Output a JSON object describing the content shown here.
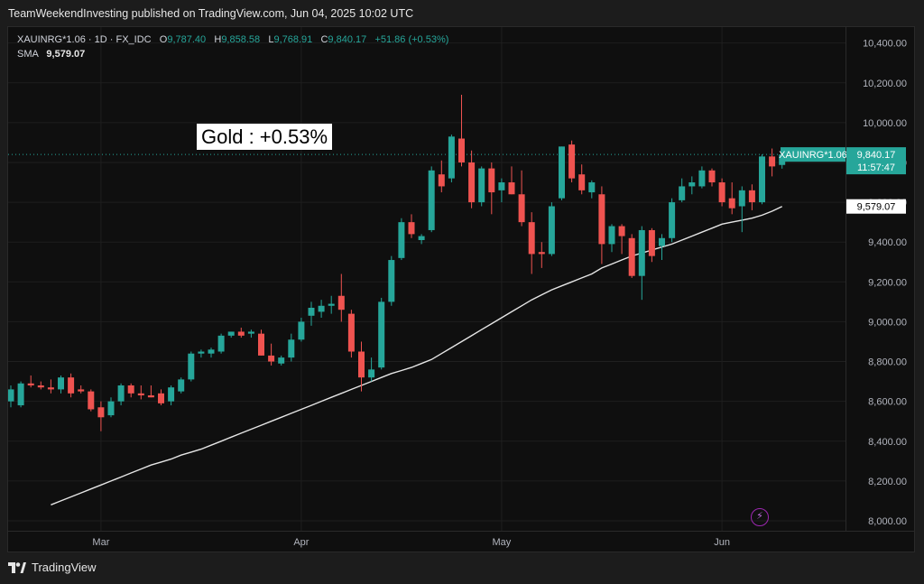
{
  "header": {
    "published_text": "TeamWeekendInvesting published on TradingView.com, Jun 04, 2025 10:02 UTC"
  },
  "legend": {
    "symbol": "XAUINRG*1.06",
    "interval": "1D",
    "exchange": "FX_IDC",
    "open_label": "O",
    "open": "9,787.40",
    "high_label": "H",
    "high": "9,858.58",
    "low_label": "L",
    "low": "9,768.91",
    "close_label": "C",
    "close": "9,840.17",
    "change": "+51.86 (+0.53%)",
    "sma_label": "SMA",
    "sma_value": "9,579.07"
  },
  "annotation": {
    "text": "Gold : +0.53%"
  },
  "price_tags": {
    "symbol_tag": "XAUINRG*1.06",
    "last_price": "9,840.17",
    "countdown": "11:57:47",
    "sma_tag": "9,579.07"
  },
  "colors": {
    "up": "#26a69a",
    "down": "#ef5350",
    "sma": "#e6e6e6",
    "background": "#0f0f0f",
    "grid": "#1f1f1f",
    "text": "#b2b5be",
    "price_line": "#26a69a"
  },
  "footer": {
    "brand": "TradingView"
  },
  "icons": {
    "tv_logo": "tradingview-logo",
    "bolt": "lightning-icon"
  },
  "chart_data": {
    "type": "candlestick",
    "title": "",
    "xlabel": "",
    "ylabel": "",
    "ylim": [
      7950,
      10480
    ],
    "y_ticks": [
      "8,000.00",
      "8,200.00",
      "8,400.00",
      "8,600.00",
      "8,800.00",
      "9,000.00",
      "9,200.00",
      "9,400.00",
      "9,600.00",
      "9,800.00",
      "10,000.00",
      "10,200.00",
      "10,400.00"
    ],
    "y_tick_values": [
      8000,
      8200,
      8400,
      8600,
      8800,
      9000,
      9200,
      9400,
      9600,
      9800,
      10000,
      10200,
      10400
    ],
    "x_ticks": [
      {
        "label": "Mar",
        "index": 9
      },
      {
        "label": "Apr",
        "index": 29
      },
      {
        "label": "May",
        "index": 49
      },
      {
        "label": "Jun",
        "index": 71
      }
    ],
    "series": [
      {
        "name": "XAUINRG*1.06",
        "candles": [
          {
            "o": 8600,
            "h": 8680,
            "l": 8570,
            "c": 8660
          },
          {
            "o": 8580,
            "h": 8700,
            "l": 8570,
            "c": 8690
          },
          {
            "o": 8690,
            "h": 8730,
            "l": 8670,
            "c": 8680
          },
          {
            "o": 8680,
            "h": 8700,
            "l": 8660,
            "c": 8670
          },
          {
            "o": 8670,
            "h": 8710,
            "l": 8640,
            "c": 8660
          },
          {
            "o": 8660,
            "h": 8730,
            "l": 8640,
            "c": 8720
          },
          {
            "o": 8720,
            "h": 8740,
            "l": 8620,
            "c": 8640
          },
          {
            "o": 8660,
            "h": 8680,
            "l": 8640,
            "c": 8650
          },
          {
            "o": 8650,
            "h": 8660,
            "l": 8550,
            "c": 8560
          },
          {
            "o": 8570,
            "h": 8600,
            "l": 8450,
            "c": 8520
          },
          {
            "o": 8530,
            "h": 8620,
            "l": 8520,
            "c": 8600
          },
          {
            "o": 8600,
            "h": 8690,
            "l": 8580,
            "c": 8680
          },
          {
            "o": 8680,
            "h": 8690,
            "l": 8620,
            "c": 8640
          },
          {
            "o": 8640,
            "h": 8680,
            "l": 8610,
            "c": 8630
          },
          {
            "o": 8630,
            "h": 8680,
            "l": 8620,
            "c": 8620
          },
          {
            "o": 8640,
            "h": 8660,
            "l": 8580,
            "c": 8590
          },
          {
            "o": 8600,
            "h": 8680,
            "l": 8580,
            "c": 8670
          },
          {
            "o": 8650,
            "h": 8720,
            "l": 8640,
            "c": 8710
          },
          {
            "o": 8710,
            "h": 8850,
            "l": 8700,
            "c": 8840
          },
          {
            "o": 8840,
            "h": 8860,
            "l": 8820,
            "c": 8850
          },
          {
            "o": 8840,
            "h": 8870,
            "l": 8820,
            "c": 8860
          },
          {
            "o": 8850,
            "h": 8940,
            "l": 8840,
            "c": 8930
          },
          {
            "o": 8930,
            "h": 8950,
            "l": 8920,
            "c": 8950
          },
          {
            "o": 8950,
            "h": 8970,
            "l": 8920,
            "c": 8930
          },
          {
            "o": 8940,
            "h": 8960,
            "l": 8920,
            "c": 8950
          },
          {
            "o": 8940,
            "h": 8960,
            "l": 8830,
            "c": 8830
          },
          {
            "o": 8830,
            "h": 8890,
            "l": 8780,
            "c": 8800
          },
          {
            "o": 8790,
            "h": 8830,
            "l": 8780,
            "c": 8820
          },
          {
            "o": 8820,
            "h": 8940,
            "l": 8800,
            "c": 8910
          },
          {
            "o": 8910,
            "h": 9020,
            "l": 8900,
            "c": 9000
          },
          {
            "o": 9030,
            "h": 9100,
            "l": 8980,
            "c": 9070
          },
          {
            "o": 9050,
            "h": 9110,
            "l": 9020,
            "c": 9080
          },
          {
            "o": 9080,
            "h": 9130,
            "l": 9040,
            "c": 9090
          },
          {
            "o": 9130,
            "h": 9240,
            "l": 9000,
            "c": 9060
          },
          {
            "o": 9040,
            "h": 9060,
            "l": 8820,
            "c": 8850
          },
          {
            "o": 8850,
            "h": 8900,
            "l": 8650,
            "c": 8720
          },
          {
            "o": 8720,
            "h": 8820,
            "l": 8700,
            "c": 8760
          },
          {
            "o": 8770,
            "h": 9120,
            "l": 8760,
            "c": 9100
          },
          {
            "o": 9100,
            "h": 9330,
            "l": 9080,
            "c": 9310
          },
          {
            "o": 9320,
            "h": 9520,
            "l": 9310,
            "c": 9500
          },
          {
            "o": 9500,
            "h": 9540,
            "l": 9420,
            "c": 9440
          },
          {
            "o": 9410,
            "h": 9440,
            "l": 9390,
            "c": 9430
          },
          {
            "o": 9460,
            "h": 9780,
            "l": 9450,
            "c": 9760
          },
          {
            "o": 9740,
            "h": 9810,
            "l": 9650,
            "c": 9680
          },
          {
            "o": 9720,
            "h": 9940,
            "l": 9700,
            "c": 9930
          },
          {
            "o": 9920,
            "h": 10140,
            "l": 9780,
            "c": 9800
          },
          {
            "o": 9800,
            "h": 9860,
            "l": 9570,
            "c": 9600
          },
          {
            "o": 9600,
            "h": 9780,
            "l": 9580,
            "c": 9770
          },
          {
            "o": 9770,
            "h": 9800,
            "l": 9540,
            "c": 9650
          },
          {
            "o": 9660,
            "h": 9720,
            "l": 9600,
            "c": 9700
          },
          {
            "o": 9700,
            "h": 9780,
            "l": 9640,
            "c": 9640
          },
          {
            "o": 9640,
            "h": 9760,
            "l": 9480,
            "c": 9500
          },
          {
            "o": 9500,
            "h": 9550,
            "l": 9240,
            "c": 9340
          },
          {
            "o": 9350,
            "h": 9400,
            "l": 9270,
            "c": 9340
          },
          {
            "o": 9340,
            "h": 9600,
            "l": 9330,
            "c": 9580
          },
          {
            "o": 9620,
            "h": 9880,
            "l": 9610,
            "c": 9880
          },
          {
            "o": 9890,
            "h": 9910,
            "l": 9700,
            "c": 9720
          },
          {
            "o": 9740,
            "h": 9790,
            "l": 9640,
            "c": 9660
          },
          {
            "o": 9650,
            "h": 9710,
            "l": 9620,
            "c": 9700
          },
          {
            "o": 9640,
            "h": 9680,
            "l": 9290,
            "c": 9390
          },
          {
            "o": 9390,
            "h": 9490,
            "l": 9350,
            "c": 9480
          },
          {
            "o": 9480,
            "h": 9490,
            "l": 9340,
            "c": 9430
          },
          {
            "o": 9420,
            "h": 9440,
            "l": 9220,
            "c": 9230
          },
          {
            "o": 9230,
            "h": 9480,
            "l": 9110,
            "c": 9460
          },
          {
            "o": 9460,
            "h": 9470,
            "l": 9300,
            "c": 9330
          },
          {
            "o": 9380,
            "h": 9440,
            "l": 9310,
            "c": 9420
          },
          {
            "o": 9420,
            "h": 9620,
            "l": 9400,
            "c": 9600
          },
          {
            "o": 9610,
            "h": 9720,
            "l": 9600,
            "c": 9680
          },
          {
            "o": 9680,
            "h": 9730,
            "l": 9640,
            "c": 9700
          },
          {
            "o": 9680,
            "h": 9780,
            "l": 9670,
            "c": 9760
          },
          {
            "o": 9760,
            "h": 9770,
            "l": 9680,
            "c": 9700
          },
          {
            "o": 9700,
            "h": 9720,
            "l": 9580,
            "c": 9600
          },
          {
            "o": 9620,
            "h": 9700,
            "l": 9540,
            "c": 9570
          },
          {
            "o": 9580,
            "h": 9680,
            "l": 9450,
            "c": 9660
          },
          {
            "o": 9660,
            "h": 9690,
            "l": 9560,
            "c": 9600
          },
          {
            "o": 9600,
            "h": 9840,
            "l": 9590,
            "c": 9830
          },
          {
            "o": 9830,
            "h": 9870,
            "l": 9730,
            "c": 9780
          },
          {
            "o": 9787.4,
            "h": 9858.58,
            "l": 9768.91,
            "c": 9840.17
          }
        ]
      },
      {
        "name": "SMA",
        "values": [
          8080,
          8100,
          8120,
          8140,
          8160,
          8180,
          8200,
          8220,
          8240,
          8260,
          8280,
          8295,
          8310,
          8330,
          8345,
          8360,
          8380,
          8400,
          8420,
          8440,
          8460,
          8480,
          8500,
          8520,
          8540,
          8560,
          8580,
          8600,
          8620,
          8640,
          8660,
          8680,
          8700,
          8720,
          8740,
          8755,
          8770,
          8790,
          8810,
          8840,
          8870,
          8900,
          8930,
          8960,
          8990,
          9020,
          9050,
          9080,
          9110,
          9135,
          9160,
          9180,
          9200,
          9220,
          9240,
          9270,
          9290,
          9310,
          9330,
          9345,
          9360,
          9375,
          9390,
          9410,
          9430,
          9450,
          9470,
          9490,
          9500,
          9510,
          9520,
          9535,
          9555,
          9579.07
        ]
      }
    ]
  }
}
